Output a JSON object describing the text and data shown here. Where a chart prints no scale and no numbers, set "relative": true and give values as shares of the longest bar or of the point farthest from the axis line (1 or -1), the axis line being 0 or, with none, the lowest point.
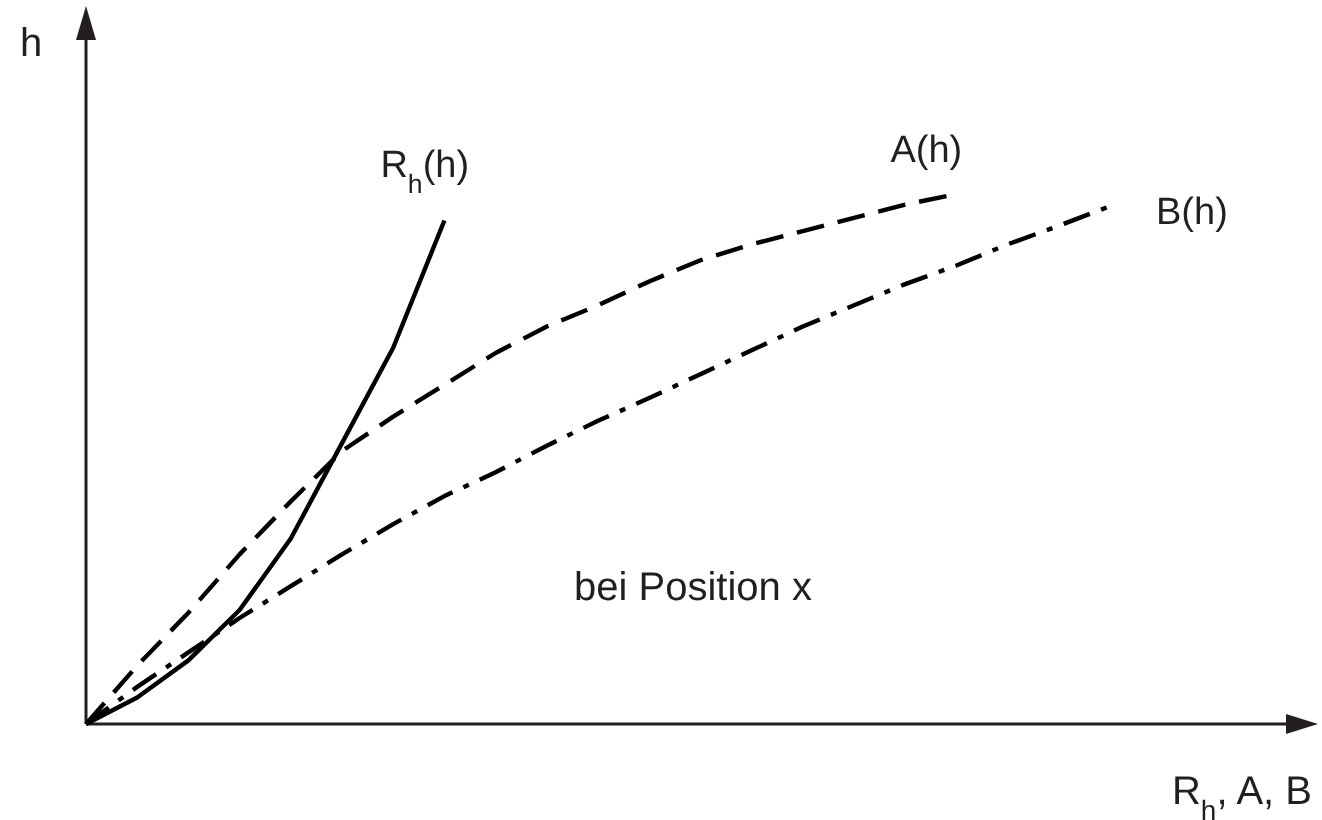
{
  "chart_data": {
    "type": "line",
    "relative": true,
    "xlabel": "R$_{h}$, A, B",
    "ylabel": "h",
    "annotations": [
      "bei Position x"
    ],
    "categories": [
      null,
      null,
      null,
      null,
      null,
      null,
      null,
      null,
      null,
      null,
      null,
      null,
      null,
      null,
      null,
      null,
      null,
      null,
      null,
      null,
      null
    ],
    "series": [
      {
        "name": "R$_{h}$(h)",
        "color": "#000000",
        "line_style": "solid",
        "values": [
          0,
          0.05,
          0.12,
          0.215,
          0.35,
          0.53,
          0.71,
          0.95,
          null,
          null,
          null,
          null,
          null,
          null,
          null,
          null,
          null,
          null,
          null,
          null,
          null
        ]
      },
      {
        "name": "A(h)",
        "color": "#000000",
        "line_style": "dashed",
        "values": [
          0,
          0.11,
          0.21,
          0.32,
          0.42,
          0.515,
          0.58,
          0.64,
          0.7,
          0.75,
          0.79,
          0.835,
          0.875,
          0.905,
          0.93,
          0.955,
          0.98,
          1,
          null,
          null,
          null
        ]
      },
      {
        "name": "B(h)",
        "color": "#000000",
        "line_style": "dashdot",
        "values": [
          0,
          0.07,
          0.135,
          0.2,
          0.26,
          0.32,
          0.377,
          0.43,
          0.475,
          0.525,
          0.572,
          0.615,
          0.66,
          0.705,
          0.75,
          0.79,
          0.83,
          0.865,
          0.905,
          0.94,
          0.977
        ]
      }
    ]
  }
}
